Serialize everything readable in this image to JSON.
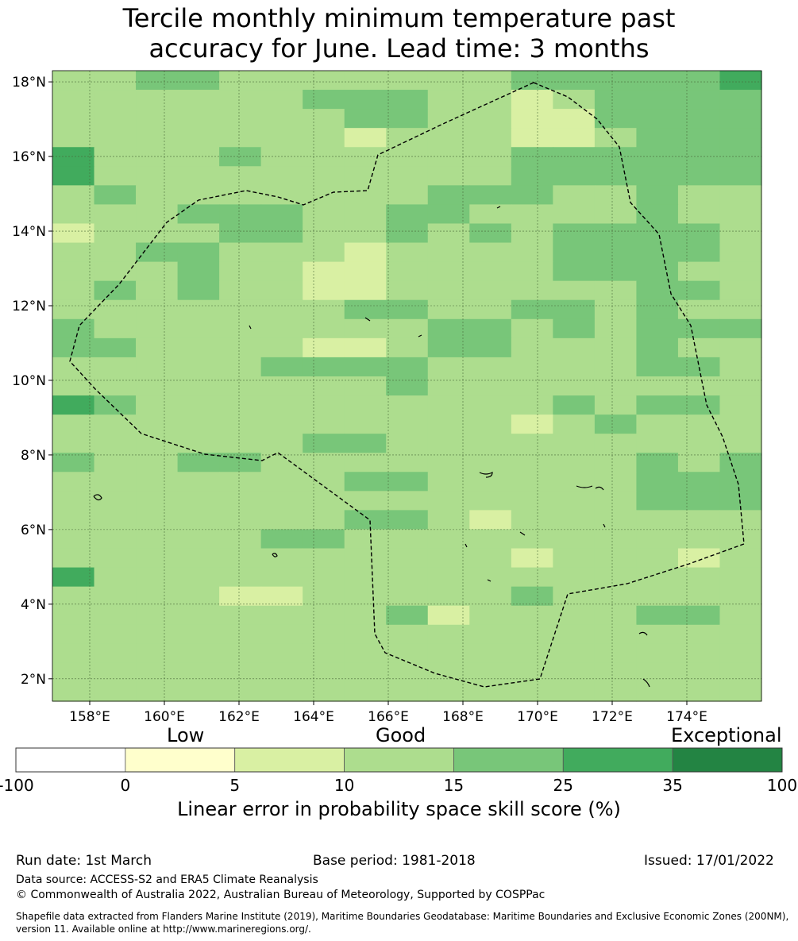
{
  "title": {
    "line1": "Tercile monthly minimum temperature past",
    "line2": "accuracy for June. Lead time: 3 months"
  },
  "map": {
    "lat_ticks": [
      "18°N",
      "16°N",
      "14°N",
      "12°N",
      "10°N",
      "8°N",
      "6°N",
      "4°N",
      "2°N"
    ],
    "lon_ticks": [
      "158°E",
      "160°E",
      "162°E",
      "164°E",
      "166°E",
      "168°E",
      "170°E",
      "172°E",
      "174°E"
    ],
    "lon_range": [
      157.0,
      176.0
    ],
    "lat_range": [
      1.4,
      18.3
    ],
    "grid_rows": [
      "33443333333444445",
      "33333344433234444",
      "33333334433224444",
      "33333332333223444",
      "53334333333444444",
      "53333333333444444",
      "34333333344433433",
      "33344433443333433",
      "23334433434344443",
      "33443332333344443",
      "33343322333344433",
      "34343322333333443",
      "33333334433443433",
      "43333333344343444",
      "44333322344333433",
      "33333444433333443",
      "33333333433333333",
      "54333333333343443",
      "33333333333234333",
      "33333344333333333",
      "43344333333333434",
      "33333334433333444",
      "33333333333333444",
      "33333334432333333",
      "33333443333333333",
      "33333333333233323",
      "53333333333333333",
      "33332233333433333",
      "33333333423333443",
      "33333333333333333",
      "33333333333333333",
      "33333333333333333",
      "33333333333333333"
    ],
    "colors": [
      "#ffffff",
      "#ffffcc",
      "#d9f0a3",
      "#addd8e",
      "#78c679",
      "#41ab5d",
      "#238443"
    ]
  },
  "colorbar": {
    "categories": [
      "Low",
      "Good",
      "Exceptional"
    ],
    "ticks": [
      "-100",
      "0",
      "5",
      "10",
      "15",
      "25",
      "35",
      "100"
    ],
    "label": "Linear error in probability space skill score (%)"
  },
  "footer": {
    "run_date": "Run date: 1st March",
    "base_period": "Base period: 1981-2018",
    "issued": "Issued: 17/01/2022",
    "data_source": "Data source: ACCESS-S2 and ERA5 Climate Reanalysis",
    "copyright": "© Commonwealth of Australia 2022, Australian Bureau of Meteorology, Supported by COSPPac",
    "shapefile_line1": "Shapefile data extracted from Flanders Marine Institute (2019), Maritime Boundaries Geodatabase: Maritime Boundaries and Exclusive Economic Zones (200NM),",
    "shapefile_line2": "version 11. Available online at http://www.marineregions.org/."
  }
}
